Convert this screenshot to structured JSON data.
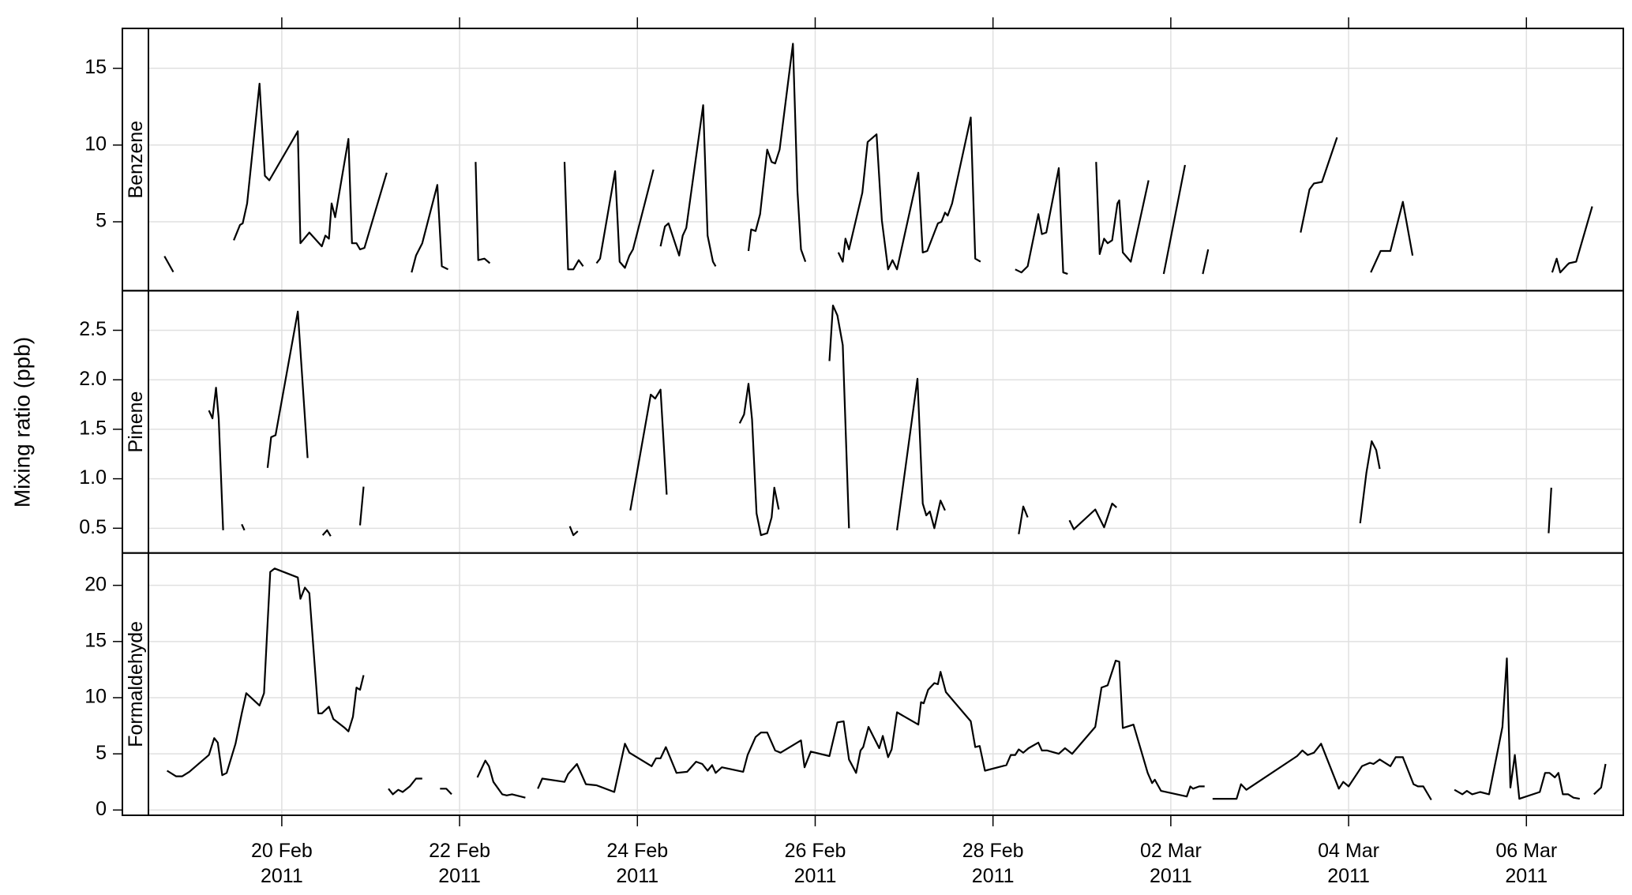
{
  "chart_data": {
    "type": "line",
    "ylabel": "Mixing ratio (ppb)",
    "grid": true,
    "xlim": [
      18.5,
      35.09
    ],
    "xticks": [
      {
        "value": 20,
        "label": "20 Feb\n2011"
      },
      {
        "value": 22,
        "label": "22 Feb\n2011"
      },
      {
        "value": 24,
        "label": "24 Feb\n2011"
      },
      {
        "value": 26,
        "label": "26 Feb\n2011"
      },
      {
        "value": 28,
        "label": "28 Feb\n2011"
      },
      {
        "value": 30,
        "label": "02 Mar\n2011"
      },
      {
        "value": 32,
        "label": "04 Mar\n2011"
      },
      {
        "value": 34,
        "label": "06 Mar\n2011"
      }
    ],
    "panels": [
      {
        "name": "Benzene",
        "color": "#000000",
        "ylim": [
          0.51,
          17.6
        ],
        "yticks": [
          5,
          10,
          15
        ],
        "x": [
          18.68,
          18.78,
          null,
          19.46,
          19.53,
          19.56,
          19.61,
          19.75,
          19.81,
          19.86,
          20.18,
          20.21,
          20.31,
          20.45,
          20.49,
          20.53,
          20.56,
          20.6,
          20.75,
          20.79,
          20.84,
          20.88,
          20.93,
          21.18,
          null,
          21.46,
          21.51,
          21.58,
          21.75,
          21.8,
          21.87,
          null,
          22.18,
          22.21,
          22.28,
          22.34,
          null,
          23.18,
          23.22,
          23.28,
          23.34,
          23.39,
          null,
          23.54,
          23.58,
          23.75,
          23.8,
          23.86,
          23.91,
          23.95,
          24.18,
          null,
          24.26,
          24.31,
          24.35,
          24.47,
          24.51,
          24.55,
          24.74,
          24.79,
          24.85,
          24.88,
          null,
          25.25,
          25.28,
          25.33,
          25.38,
          25.46,
          25.51,
          25.55,
          25.6,
          25.75,
          25.8,
          25.84,
          25.89,
          null,
          26.26,
          26.31,
          26.34,
          26.38,
          26.53,
          26.59,
          26.69,
          26.75,
          26.82,
          26.87,
          26.92,
          27.16,
          27.21,
          27.26,
          27.38,
          27.42,
          27.46,
          27.49,
          27.54,
          27.75,
          27.8,
          27.86,
          null,
          28.25,
          28.32,
          28.39,
          28.51,
          28.55,
          28.6,
          28.74,
          28.79,
          28.84,
          null,
          29.16,
          29.2,
          29.25,
          29.29,
          29.34,
          29.4,
          29.42,
          29.46,
          29.55,
          29.75,
          null,
          29.92,
          30.16,
          null,
          30.36,
          30.42,
          null,
          31.46,
          31.56,
          31.61,
          31.7,
          31.87,
          null,
          32.25,
          32.36,
          32.47,
          32.61,
          32.72,
          null,
          34.29,
          34.34,
          34.38,
          34.46,
          34.48,
          34.56,
          34.74
        ],
        "values": [
          2.76,
          1.73,
          null,
          3.8,
          4.8,
          4.9,
          6.2,
          14.0,
          8.0,
          7.7,
          10.9,
          3.6,
          4.3,
          3.4,
          4.1,
          3.9,
          6.2,
          5.3,
          10.4,
          3.6,
          3.6,
          3.2,
          3.3,
          8.2,
          null,
          1.7,
          2.8,
          3.6,
          7.4,
          2.1,
          1.9,
          null,
          8.9,
          2.5,
          2.6,
          2.3,
          null,
          8.9,
          1.9,
          1.9,
          2.5,
          2.1,
          null,
          2.3,
          2.6,
          8.3,
          2.4,
          2.0,
          2.8,
          3.2,
          8.4,
          null,
          3.4,
          4.7,
          4.9,
          2.8,
          4.1,
          4.6,
          12.6,
          4.1,
          2.4,
          2.1,
          null,
          3.1,
          4.5,
          4.4,
          5.5,
          9.7,
          8.9,
          8.8,
          9.7,
          16.6,
          7.0,
          3.2,
          2.4,
          null,
          3.0,
          2.4,
          3.9,
          3.2,
          6.9,
          10.2,
          10.7,
          5.1,
          1.9,
          2.5,
          1.9,
          8.2,
          3.0,
          3.1,
          4.9,
          5.0,
          5.6,
          5.4,
          6.2,
          11.8,
          2.6,
          2.4,
          null,
          1.9,
          1.7,
          2.1,
          5.5,
          4.2,
          4.3,
          8.5,
          1.7,
          1.6,
          null,
          8.9,
          2.9,
          3.9,
          3.6,
          3.8,
          6.2,
          6.4,
          3.0,
          2.4,
          7.7,
          null,
          1.6,
          8.7,
          null,
          1.6,
          3.2,
          null,
          4.3,
          7.1,
          7.5,
          7.6,
          10.5,
          null,
          1.7,
          3.1,
          3.1,
          6.3,
          2.8,
          null,
          1.7,
          2.6,
          1.7,
          2.2,
          2.3,
          2.4,
          6.0
        ]
      },
      {
        "name": "Pinene",
        "color": "#000000",
        "ylim": [
          0.25,
          2.9
        ],
        "yticks": [
          0.5,
          {
            "value": 1,
            "label": "1.0"
          },
          1.5,
          {
            "value": 2,
            "label": "2.0"
          },
          2.5
        ],
        "x": [
          19.18,
          19.22,
          19.26,
          19.29,
          19.34,
          null,
          19.55,
          19.58,
          null,
          19.84,
          19.88,
          19.93,
          20.18,
          20.29,
          null,
          20.46,
          20.51,
          20.55,
          null,
          20.88,
          20.92,
          null,
          23.24,
          23.28,
          23.33,
          null,
          23.92,
          24.15,
          24.2,
          24.26,
          24.33,
          null,
          25.15,
          25.2,
          25.25,
          25.29,
          25.34,
          25.39,
          25.46,
          25.51,
          25.54,
          25.59,
          null,
          26.16,
          26.2,
          26.25,
          26.31,
          26.38,
          null,
          26.92,
          27.15,
          27.21,
          27.25,
          27.29,
          27.34,
          27.41,
          27.46,
          null,
          28.29,
          28.34,
          28.39,
          null,
          28.86,
          28.91,
          29.15,
          29.25,
          29.34,
          29.39,
          null,
          32.13,
          32.2,
          32.26,
          32.31,
          32.35,
          null,
          34.25,
          34.28
        ],
        "values": [
          1.69,
          1.61,
          1.92,
          1.61,
          0.48,
          null,
          0.54,
          0.48,
          null,
          1.11,
          1.42,
          1.44,
          2.69,
          1.21,
          null,
          0.43,
          0.48,
          0.42,
          null,
          0.53,
          0.92,
          null,
          0.52,
          0.43,
          0.47,
          null,
          0.68,
          1.85,
          1.81,
          1.9,
          0.84,
          null,
          1.56,
          1.65,
          1.96,
          1.6,
          0.65,
          0.43,
          0.45,
          0.61,
          0.91,
          0.69,
          null,
          2.19,
          2.75,
          2.65,
          2.35,
          0.5,
          null,
          0.48,
          2.01,
          0.75,
          0.63,
          0.67,
          0.5,
          0.78,
          0.68,
          null,
          0.44,
          0.72,
          0.61,
          null,
          0.58,
          0.49,
          0.69,
          0.51,
          0.75,
          0.71,
          null,
          0.55,
          1.06,
          1.38,
          1.29,
          1.1,
          null,
          0.45,
          0.91
        ]
      },
      {
        "name": "Formaldehyde",
        "color": "#000000",
        "ylim": [
          -0.47,
          22.88
        ],
        "yticks": [
          0,
          5,
          10,
          15,
          20
        ],
        "x": [
          18.71,
          18.81,
          18.88,
          18.96,
          19.18,
          19.24,
          19.28,
          19.33,
          19.38,
          19.48,
          19.55,
          19.6,
          19.75,
          19.8,
          19.84,
          19.87,
          19.92,
          20.18,
          20.21,
          20.26,
          20.31,
          20.41,
          20.45,
          20.53,
          20.58,
          20.71,
          20.75,
          20.8,
          20.84,
          20.88,
          20.92,
          null,
          21.2,
          21.25,
          21.31,
          21.36,
          21.44,
          21.51,
          21.58,
          null,
          21.78,
          21.85,
          21.91,
          null,
          22.2,
          22.29,
          22.33,
          22.38,
          22.48,
          22.53,
          22.59,
          22.74,
          null,
          22.88,
          22.93,
          23.18,
          23.22,
          23.32,
          23.42,
          23.54,
          23.74,
          23.86,
          23.91,
          24.16,
          24.21,
          24.26,
          24.32,
          24.44,
          24.56,
          24.66,
          24.73,
          24.79,
          24.84,
          24.88,
          24.95,
          25.19,
          25.24,
          25.33,
          25.39,
          25.46,
          25.55,
          25.61,
          25.84,
          25.88,
          25.95,
          26.16,
          26.25,
          26.32,
          26.38,
          26.46,
          26.51,
          26.54,
          26.6,
          26.72,
          26.76,
          26.82,
          26.86,
          26.92,
          27.16,
          27.19,
          27.22,
          27.27,
          27.34,
          27.38,
          27.41,
          27.47,
          27.75,
          27.8,
          27.85,
          27.91,
          28.15,
          28.2,
          28.25,
          28.29,
          28.34,
          28.4,
          28.51,
          28.55,
          28.61,
          28.74,
          28.81,
          28.89,
          29.15,
          29.22,
          29.29,
          29.38,
          29.42,
          29.46,
          29.54,
          29.58,
          29.74,
          29.79,
          29.82,
          29.89,
          30.18,
          30.22,
          30.25,
          30.32,
          30.38,
          null,
          30.47,
          30.74,
          30.79,
          30.85,
          31.42,
          31.48,
          31.54,
          31.61,
          31.69,
          31.89,
          31.94,
          32.0,
          32.15,
          32.24,
          32.28,
          32.35,
          32.47,
          32.53,
          32.61,
          32.73,
          32.78,
          32.84,
          32.93,
          null,
          33.19,
          33.28,
          33.33,
          33.39,
          33.48,
          33.58,
          33.73,
          33.78,
          33.82,
          33.87,
          33.92,
          34.15,
          34.21,
          34.26,
          34.32,
          34.36,
          34.41,
          34.47,
          34.53,
          34.6,
          null,
          34.76,
          34.84,
          34.89
        ],
        "values": [
          3.5,
          3.0,
          3.0,
          3.4,
          4.9,
          6.4,
          6.0,
          3.1,
          3.3,
          5.9,
          8.6,
          10.4,
          9.3,
          10.4,
          16.6,
          21.2,
          21.5,
          20.7,
          18.8,
          19.8,
          19.3,
          8.6,
          8.6,
          9.2,
          8.1,
          7.3,
          7.0,
          8.3,
          10.9,
          10.7,
          12.0,
          null,
          1.9,
          1.4,
          1.8,
          1.6,
          2.1,
          2.8,
          2.8,
          null,
          1.9,
          1.9,
          1.4,
          null,
          2.9,
          4.4,
          3.9,
          2.5,
          1.4,
          1.3,
          1.4,
          1.1,
          null,
          1.9,
          2.8,
          2.5,
          3.2,
          4.1,
          2.3,
          2.2,
          1.6,
          5.9,
          5.1,
          3.9,
          4.6,
          4.6,
          5.6,
          3.3,
          3.4,
          4.3,
          4.1,
          3.5,
          4.0,
          3.3,
          3.8,
          3.4,
          4.9,
          6.5,
          6.9,
          6.9,
          5.3,
          5.1,
          6.2,
          3.8,
          5.2,
          4.8,
          7.8,
          7.9,
          4.5,
          3.3,
          5.3,
          5.6,
          7.4,
          5.5,
          6.6,
          4.7,
          5.4,
          8.7,
          7.6,
          9.6,
          9.5,
          10.7,
          11.3,
          11.2,
          12.3,
          10.5,
          7.9,
          5.6,
          5.7,
          3.5,
          4.0,
          4.9,
          4.9,
          5.4,
          5.1,
          5.5,
          6.0,
          5.3,
          5.3,
          5.0,
          5.5,
          5.0,
          7.4,
          10.9,
          11.1,
          13.3,
          13.2,
          7.3,
          7.5,
          7.6,
          3.3,
          2.4,
          2.7,
          1.7,
          1.2,
          2.1,
          1.9,
          2.1,
          2.1,
          null,
          1.0,
          1.0,
          2.3,
          1.8,
          4.8,
          5.3,
          4.9,
          5.1,
          5.9,
          1.9,
          2.5,
          2.1,
          3.9,
          4.2,
          4.1,
          4.5,
          3.9,
          4.7,
          4.7,
          2.3,
          2.1,
          2.1,
          0.9,
          null,
          1.8,
          1.4,
          1.7,
          1.4,
          1.6,
          1.4,
          7.4,
          13.5,
          2.0,
          4.9,
          1.0,
          1.6,
          3.3,
          3.3,
          2.9,
          3.3,
          1.4,
          1.4,
          1.1,
          1.0,
          null,
          1.4,
          2.0,
          4.1
        ]
      }
    ]
  }
}
